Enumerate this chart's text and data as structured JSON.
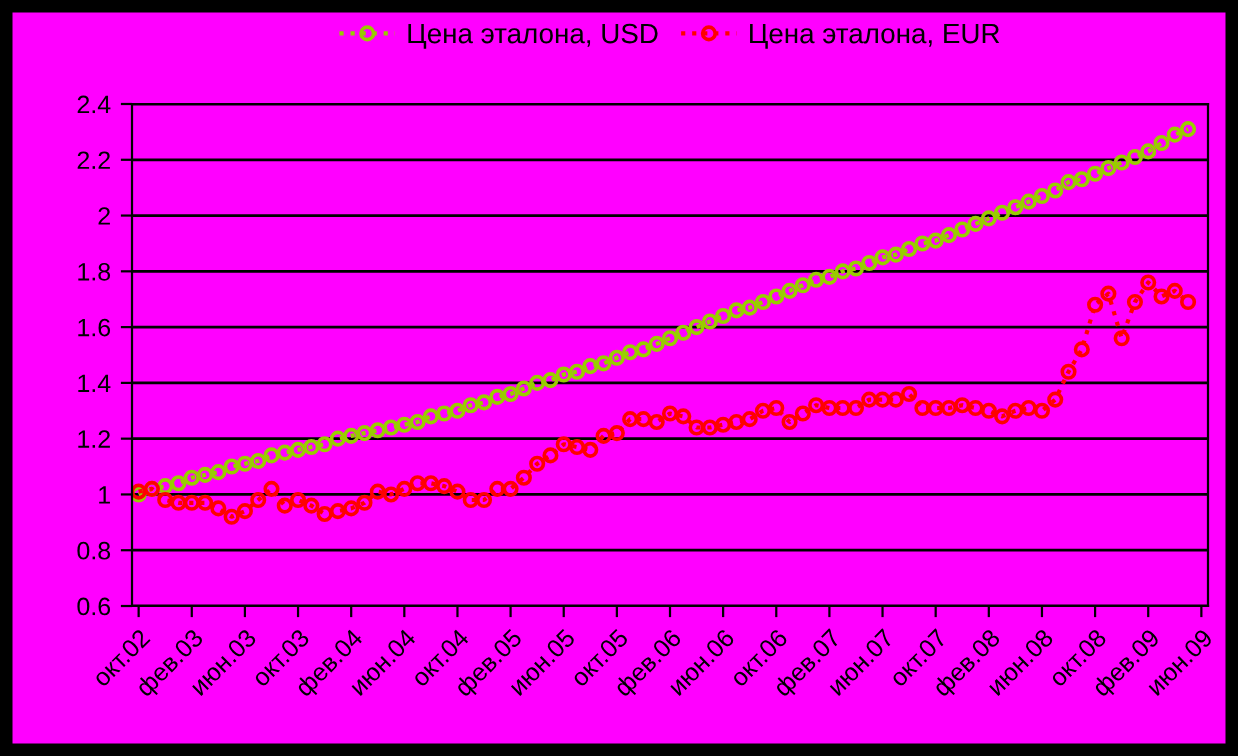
{
  "chart_data": {
    "type": "line",
    "categories": [
      "окт.02",
      null,
      null,
      null,
      "фев.03",
      null,
      null,
      null,
      "июн.03",
      null,
      null,
      null,
      "окт.03",
      null,
      null,
      null,
      "фев.04",
      null,
      null,
      null,
      "июн.04",
      null,
      null,
      null,
      "окт.04",
      null,
      null,
      null,
      "фев.05",
      null,
      null,
      null,
      "июн.05",
      null,
      null,
      null,
      "окт.05",
      null,
      null,
      null,
      "фев.06",
      null,
      null,
      null,
      "июн.06",
      null,
      null,
      null,
      "окт.06",
      null,
      null,
      null,
      "фев.07",
      null,
      null,
      null,
      "июн.07",
      null,
      null,
      null,
      "окт.07",
      null,
      null,
      null,
      "фев.08",
      null,
      null,
      null,
      "июн.08",
      null,
      null,
      null,
      "окт.08",
      null,
      null,
      null,
      "фев.09",
      null,
      null,
      null,
      "июн.09"
    ],
    "series": [
      {
        "name": "Цена эталона, USD",
        "color": "#99cc00",
        "values": [
          1.0,
          1.02,
          1.03,
          1.04,
          1.06,
          1.07,
          1.08,
          1.1,
          1.11,
          1.12,
          1.14,
          1.15,
          1.16,
          1.17,
          1.18,
          1.2,
          1.21,
          1.22,
          1.23,
          1.24,
          1.25,
          1.26,
          1.28,
          1.29,
          1.3,
          1.32,
          1.33,
          1.35,
          1.36,
          1.38,
          1.4,
          1.41,
          1.43,
          1.44,
          1.46,
          1.47,
          1.49,
          1.51,
          1.52,
          1.54,
          1.56,
          1.58,
          1.6,
          1.62,
          1.64,
          1.66,
          1.67,
          1.69,
          1.71,
          1.73,
          1.75,
          1.77,
          1.78,
          1.8,
          1.81,
          1.83,
          1.85,
          1.86,
          1.88,
          1.9,
          1.91,
          1.93,
          1.95,
          1.97,
          1.99,
          2.01,
          2.03,
          2.05,
          2.07,
          2.09,
          2.12,
          2.13,
          2.15,
          2.17,
          2.19,
          2.21,
          2.23,
          2.26,
          2.29,
          2.31,
          null
        ]
      },
      {
        "name": "Цена эталона, EUR",
        "color": "#ff0000",
        "values": [
          1.01,
          1.02,
          0.98,
          0.97,
          0.97,
          0.97,
          0.95,
          0.92,
          0.94,
          0.98,
          1.02,
          0.96,
          0.98,
          0.96,
          0.93,
          0.94,
          0.95,
          0.97,
          1.01,
          1.0,
          1.02,
          1.04,
          1.04,
          1.03,
          1.01,
          0.98,
          0.98,
          1.02,
          1.02,
          1.06,
          1.11,
          1.14,
          1.18,
          1.17,
          1.16,
          1.21,
          1.22,
          1.27,
          1.27,
          1.26,
          1.29,
          1.28,
          1.24,
          1.24,
          1.25,
          1.26,
          1.27,
          1.3,
          1.31,
          1.26,
          1.29,
          1.32,
          1.31,
          1.31,
          1.31,
          1.34,
          1.34,
          1.34,
          1.36,
          1.31,
          1.31,
          1.31,
          1.32,
          1.31,
          1.3,
          1.28,
          1.3,
          1.31,
          1.3,
          1.34,
          1.44,
          1.52,
          1.68,
          1.72,
          1.56,
          1.69,
          1.76,
          1.71,
          1.73,
          1.69,
          null
        ]
      }
    ],
    "ylim": [
      0.6,
      2.4
    ],
    "yticks": [
      0.6,
      0.8,
      1,
      1.2,
      1.4,
      1.6,
      1.8,
      2,
      2.2,
      2.4
    ],
    "grid": "y",
    "legend": "top",
    "marker": "circle",
    "line_style": "dotted"
  }
}
